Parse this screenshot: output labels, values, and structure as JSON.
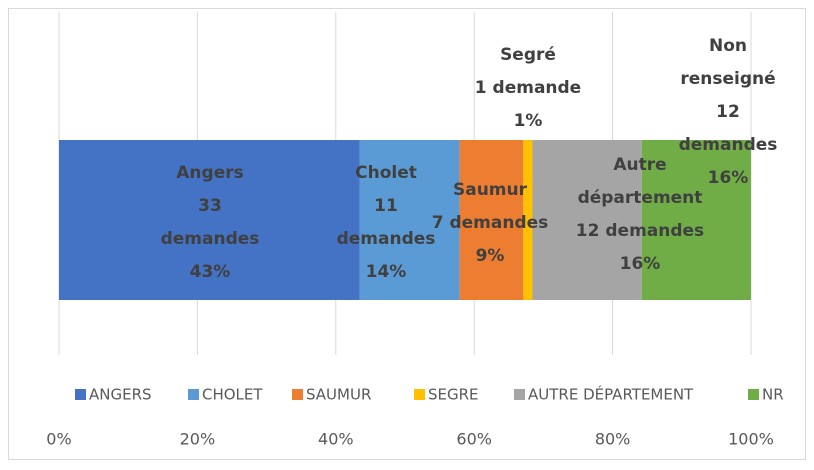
{
  "chart_data": {
    "type": "stacked_bar_100",
    "categories": [
      null
    ],
    "series": [
      {
        "name": "ANGERS",
        "color": "#4472c4",
        "values": [
          43.42
        ],
        "label_lines": [
          "Angers",
          "33",
          "demandes"
        ],
        "value_labels": [
          "43%"
        ]
      },
      {
        "name": "CHOLET",
        "color": "#5b9bd5",
        "values": [
          14.47
        ],
        "label_lines": [
          "Cholet",
          "11",
          "demandes"
        ],
        "value_labels": [
          "14%"
        ]
      },
      {
        "name": "SAUMUR",
        "color": "#ed7d31",
        "values": [
          9.21
        ],
        "label_lines": [
          "Saumur",
          "7 demandes"
        ],
        "value_labels": [
          "9%"
        ]
      },
      {
        "name": "SEGRE",
        "color": "#ffc000",
        "values": [
          1.32
        ],
        "label_lines": [
          "Segré",
          "1 demande"
        ],
        "value_labels": [
          "1%"
        ]
      },
      {
        "name": "AUTRE DÉPARTEMENT",
        "color": "#a5a5a5",
        "values": [
          15.79
        ],
        "label_lines": [
          "Autre",
          "département",
          "12 demandes"
        ],
        "value_labels": [
          "16%"
        ]
      },
      {
        "name": "NR",
        "color": "#70ad47",
        "values": [
          15.79
        ],
        "label_lines": [
          "Non",
          "renseigné",
          "12",
          "demandes"
        ],
        "value_labels": [
          "16%"
        ]
      }
    ],
    "xlim": [
      0,
      100
    ],
    "xticks": [
      {
        "value": 0,
        "label": "0%"
      },
      {
        "value": 20,
        "label": "20%"
      },
      {
        "value": 40,
        "label": "40%"
      },
      {
        "value": 60,
        "label": "60%"
      },
      {
        "value": 80,
        "label": "80%"
      },
      {
        "value": 100,
        "label": "100%"
      }
    ],
    "grid": true,
    "legend": "bottom"
  }
}
